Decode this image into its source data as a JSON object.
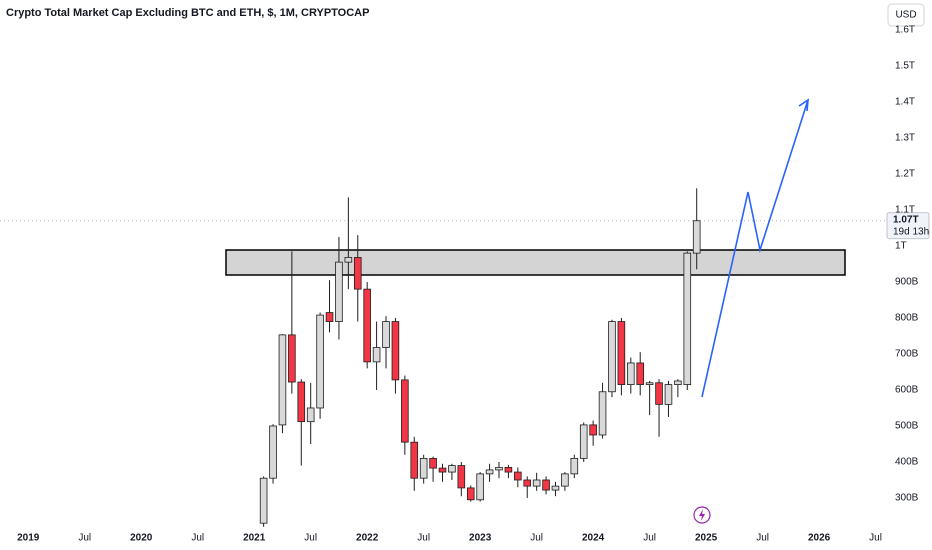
{
  "chart_data": {
    "type": "candlestick",
    "title": "Crypto Total Market Cap Excluding BTC and ETH, $, 1M, CRYPTOCAP",
    "currency": "USD",
    "x": [
      "2021-02",
      "2021-03",
      "2021-04",
      "2021-05",
      "2021-06",
      "2021-07",
      "2021-08",
      "2021-09",
      "2021-10",
      "2021-11",
      "2021-12",
      "2022-01",
      "2022-02",
      "2022-03",
      "2022-04",
      "2022-05",
      "2022-06",
      "2022-07",
      "2022-08",
      "2022-09",
      "2022-10",
      "2022-11",
      "2022-12",
      "2023-01",
      "2023-02",
      "2023-03",
      "2023-04",
      "2023-05",
      "2023-06",
      "2023-07",
      "2023-08",
      "2023-09",
      "2023-10",
      "2023-11",
      "2023-12",
      "2024-01",
      "2024-02",
      "2024-03",
      "2024-04",
      "2024-05",
      "2024-06",
      "2024-07",
      "2024-08",
      "2024-09",
      "2024-10",
      "2024-11",
      "2024-12"
    ],
    "open": [
      230,
      355,
      503,
      753,
      622,
      512,
      550,
      815,
      790,
      955,
      968,
      880,
      678,
      718,
      790,
      628,
      455,
      355,
      410,
      383,
      372,
      390,
      328,
      295,
      367,
      378,
      385,
      372,
      350,
      333,
      350,
      322,
      333,
      367,
      410,
      503,
      475,
      595,
      790,
      615,
      675,
      615,
      620,
      560,
      615,
      615,
      980
    ],
    "high": [
      360,
      505,
      755,
      985,
      630,
      620,
      815,
      905,
      1025,
      1135,
      1030,
      900,
      790,
      805,
      800,
      640,
      470,
      420,
      415,
      395,
      395,
      400,
      335,
      372,
      395,
      400,
      392,
      385,
      360,
      370,
      360,
      345,
      372,
      420,
      510,
      515,
      620,
      795,
      800,
      690,
      705,
      625,
      630,
      625,
      630,
      985,
      1160
    ],
    "low": [
      220,
      340,
      480,
      590,
      390,
      450,
      520,
      760,
      740,
      880,
      790,
      660,
      600,
      660,
      590,
      420,
      320,
      340,
      345,
      345,
      350,
      305,
      290,
      290,
      345,
      355,
      355,
      330,
      300,
      320,
      310,
      305,
      320,
      355,
      400,
      445,
      465,
      580,
      585,
      590,
      585,
      530,
      470,
      525,
      580,
      600,
      935
    ],
    "close": [
      355,
      500,
      753,
      622,
      512,
      550,
      808,
      790,
      955,
      968,
      880,
      678,
      718,
      790,
      628,
      455,
      355,
      410,
      383,
      372,
      390,
      328,
      295,
      367,
      378,
      385,
      372,
      350,
      333,
      350,
      322,
      333,
      367,
      410,
      503,
      475,
      595,
      790,
      615,
      675,
      615,
      620,
      560,
      615,
      625,
      980,
      1070
    ],
    "up_color": "#d9d9d9",
    "down_color": "#f23645",
    "xlim": [
      "2018-10",
      "2026-08"
    ],
    "xticks": [
      {
        "value": "2019-01",
        "label": "2019"
      },
      {
        "value": "2019-07",
        "label": "Jul"
      },
      {
        "value": "2020-01",
        "label": "2020"
      },
      {
        "value": "2020-07",
        "label": "Jul"
      },
      {
        "value": "2021-01",
        "label": "2021"
      },
      {
        "value": "2021-07",
        "label": "Jul"
      },
      {
        "value": "2022-01",
        "label": "2022"
      },
      {
        "value": "2022-07",
        "label": "Jul"
      },
      {
        "value": "2023-01",
        "label": "2023"
      },
      {
        "value": "2023-07",
        "label": "Jul"
      },
      {
        "value": "2024-01",
        "label": "2024"
      },
      {
        "value": "2024-07",
        "label": "Jul"
      },
      {
        "value": "2025-01",
        "label": "2025"
      },
      {
        "value": "2025-07",
        "label": "Jul"
      },
      {
        "value": "2026-01",
        "label": "2026"
      },
      {
        "value": "2026-07",
        "label": "Jul"
      }
    ],
    "ylim": [
      225,
      1683
    ],
    "yticks": [
      {
        "value": 300,
        "label": "300B"
      },
      {
        "value": 400,
        "label": "400B"
      },
      {
        "value": 500,
        "label": "500B"
      },
      {
        "value": 600,
        "label": "600B"
      },
      {
        "value": 700,
        "label": "700B"
      },
      {
        "value": 800,
        "label": "800B"
      },
      {
        "value": 900,
        "label": "900B"
      },
      {
        "value": 1000,
        "label": "1T"
      },
      {
        "value": 1100,
        "label": "1.1T"
      },
      {
        "value": 1200,
        "label": "1.2T"
      },
      {
        "value": 1300,
        "label": "1.3T"
      },
      {
        "value": 1400,
        "label": "1.4T"
      },
      {
        "value": 1500,
        "label": "1.5T"
      },
      {
        "value": 1600,
        "label": "1.6T"
      }
    ],
    "last_price": {
      "value": 1070,
      "label": "1.07T"
    },
    "countdown": "19d 13h"
  }
}
